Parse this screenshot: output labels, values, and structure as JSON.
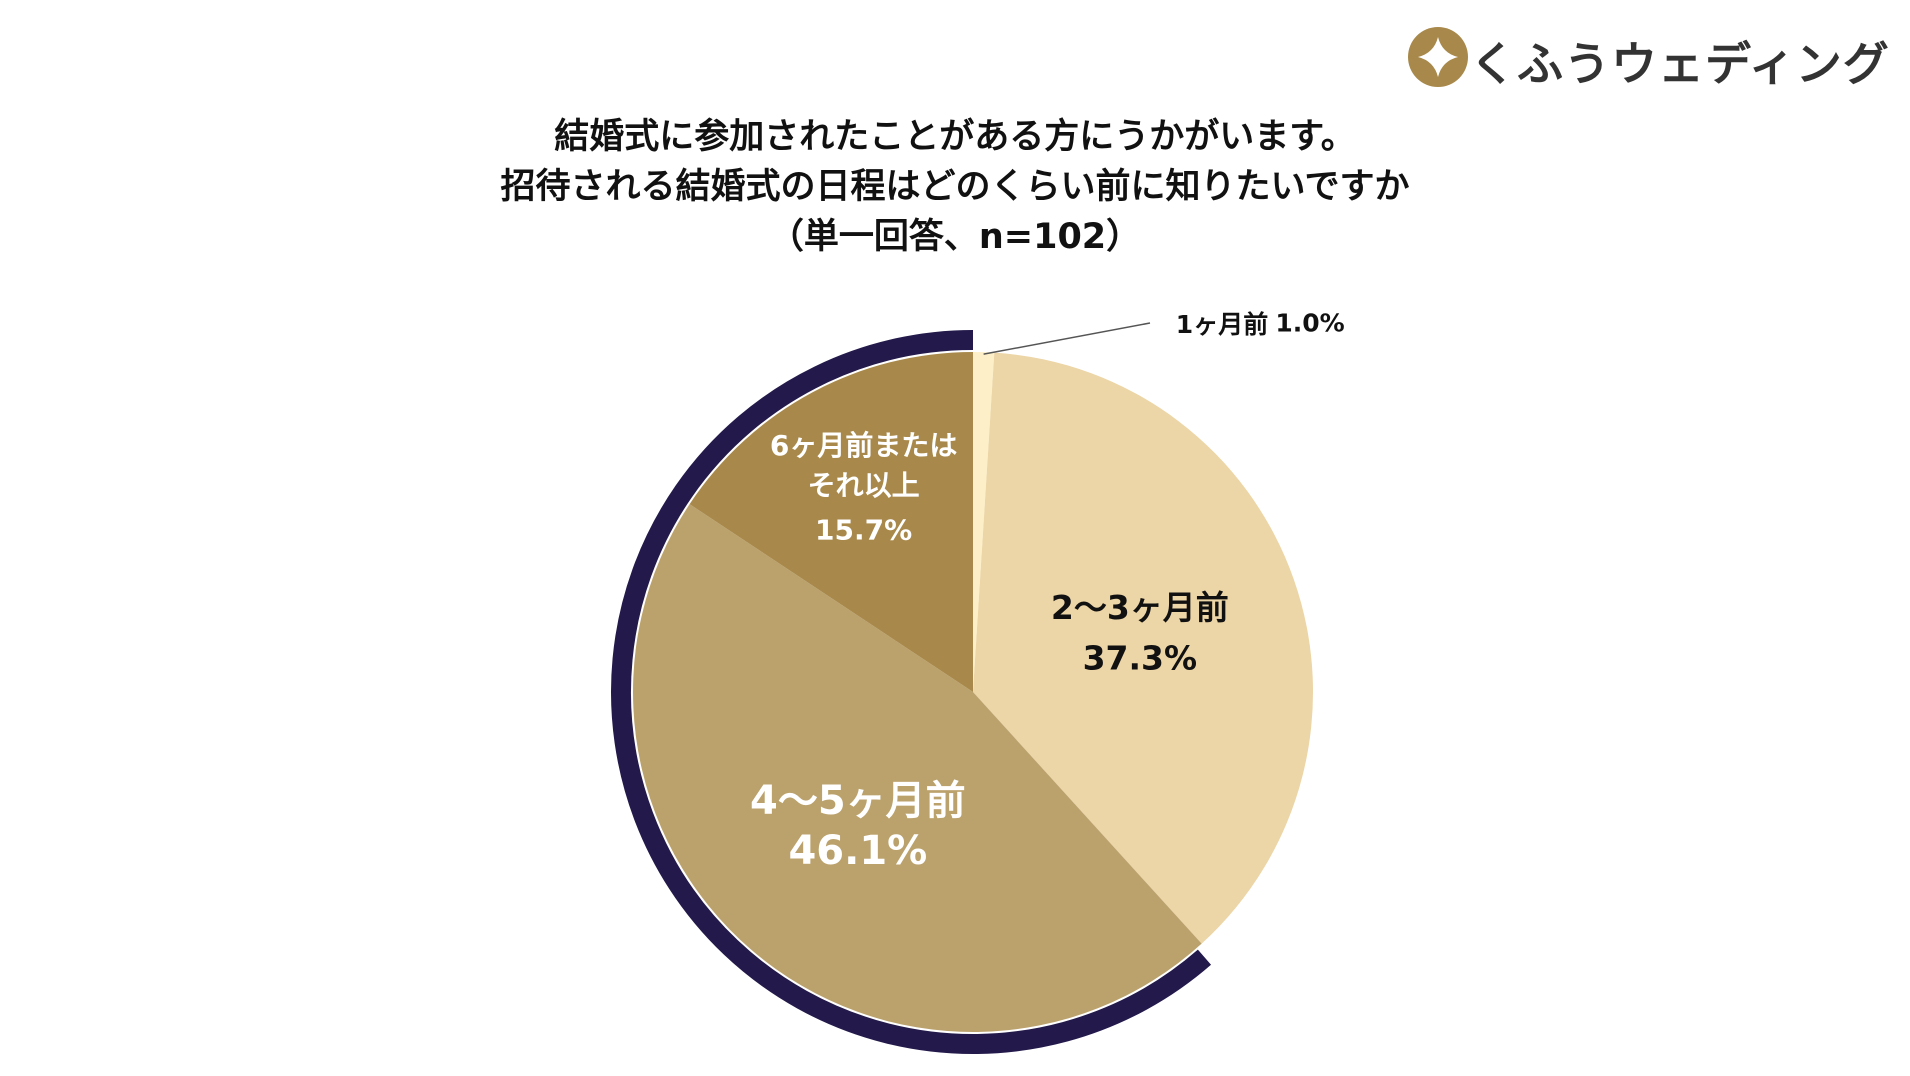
{
  "brand": "くふうウェディング",
  "chart_data": {
    "type": "pie",
    "title": "結婚式に参加されたことがある方にうかがいます。\n招待される結婚式の日程はどのくらい前に知りたいですか\n（単一回答、n=102）",
    "categories": [
      "1ヶ月前",
      "2〜3ヶ月前",
      "4〜5ヶ月前",
      "6ヶ月前または\nそれ以上"
    ],
    "values": [
      1.0,
      37.3,
      46.1,
      15.7
    ],
    "value_labels": [
      "1.0%",
      "37.3%",
      "46.1%",
      "15.7%"
    ],
    "colors": [
      "#fdf0c8",
      "#ecd5a6",
      "#bba26d",
      "#a8894b"
    ],
    "highlight_color": "#23194a"
  }
}
